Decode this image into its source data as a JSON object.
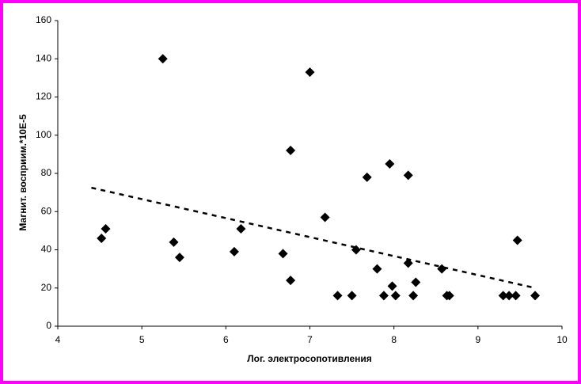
{
  "chart_data": {
    "type": "scatter",
    "x_label": "Лог. электросопотивления",
    "y_label": "Магнит. восприим.*10E-5",
    "color": "#000000",
    "x": [
      4.52,
      4.57,
      5.25,
      5.38,
      5.45,
      6.1,
      6.18,
      6.68,
      6.77,
      6.77,
      7.0,
      7.18,
      7.33,
      7.5,
      7.55,
      7.68,
      7.8,
      7.88,
      7.95,
      7.98,
      8.02,
      8.17,
      8.17,
      8.23,
      8.26,
      8.57,
      8.63,
      8.66,
      9.3,
      9.37,
      9.45,
      9.47,
      9.68
    ],
    "values": [
      46,
      51,
      140,
      44,
      36,
      39,
      51,
      38,
      92,
      24,
      133,
      57,
      16,
      16,
      40,
      78,
      30,
      16,
      85,
      21,
      16,
      79,
      33,
      16,
      23,
      30,
      16,
      16,
      16,
      16,
      16,
      45,
      16
    ],
    "trendline": {
      "x": [
        4.4,
        9.68
      ],
      "values": [
        72.5,
        20
      ]
    },
    "xlim": [
      4,
      10
    ],
    "xticks": [
      4,
      5,
      6,
      7,
      8,
      9,
      10
    ],
    "ylim": [
      0,
      160
    ],
    "yticks": [
      0,
      20,
      40,
      60,
      80,
      100,
      120,
      140,
      160
    ],
    "grid": false
  }
}
